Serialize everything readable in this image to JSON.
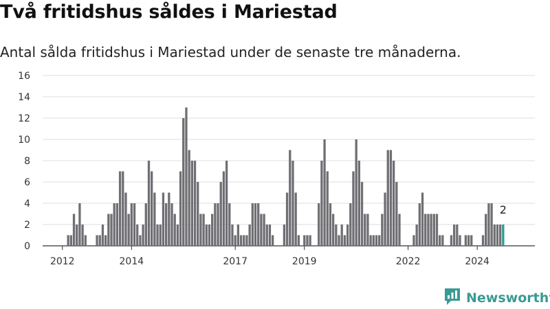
{
  "header": {
    "title": "Två fritidshus såldes i Mariestad",
    "subtitle": "Antal sålda fritidshus i Mariestad under de senaste tre månaderna."
  },
  "brand": {
    "name": "Newsworthy",
    "logo_icon": "newsworthy-chart-icon",
    "color": "#3a9a93"
  },
  "chart_data": {
    "type": "bar",
    "title": "",
    "xlabel": "",
    "ylabel": "",
    "ylim": [
      0,
      16
    ],
    "yticks": [
      0,
      2,
      4,
      6,
      8,
      10,
      12,
      14,
      16
    ],
    "xtick_labels": [
      "2012",
      "2014",
      "2017",
      "2019",
      "2022",
      "2024"
    ],
    "xtick_indices": [
      7,
      31,
      67,
      91,
      127,
      151
    ],
    "grid": true,
    "bar_color": "#6f6e73",
    "highlight_color": "#2a9d8f",
    "highlight_last": true,
    "last_value_label": "2",
    "start_period": "2011-01",
    "period": "month",
    "values": [
      0,
      0,
      0,
      0,
      0,
      0,
      0,
      0,
      0,
      1,
      1,
      3,
      2,
      4,
      2,
      1,
      0,
      0,
      0,
      1,
      1,
      2,
      1,
      3,
      3,
      4,
      4,
      7,
      7,
      5,
      3,
      4,
      4,
      2,
      1,
      2,
      4,
      8,
      7,
      5,
      2,
      2,
      5,
      4,
      5,
      4,
      3,
      2,
      7,
      12,
      13,
      9,
      8,
      8,
      6,
      3,
      3,
      2,
      2,
      3,
      4,
      4,
      6,
      7,
      8,
      4,
      2,
      1,
      2,
      1,
      1,
      1,
      2,
      4,
      4,
      4,
      3,
      3,
      2,
      2,
      1,
      0,
      0,
      0,
      2,
      5,
      9,
      8,
      5,
      1,
      0,
      1,
      1,
      1,
      0,
      0,
      4,
      8,
      10,
      7,
      4,
      3,
      2,
      1,
      2,
      1,
      2,
      4,
      7,
      10,
      8,
      6,
      3,
      3,
      1,
      1,
      1,
      1,
      3,
      5,
      9,
      9,
      8,
      6,
      3,
      0,
      0,
      0,
      0,
      1,
      2,
      4,
      5,
      3,
      3,
      3,
      3,
      3,
      1,
      1,
      0,
      0,
      1,
      2,
      2,
      1,
      0,
      1,
      1,
      1,
      0,
      0,
      0,
      1,
      3,
      4,
      4,
      2,
      2,
      2,
      2
    ]
  }
}
